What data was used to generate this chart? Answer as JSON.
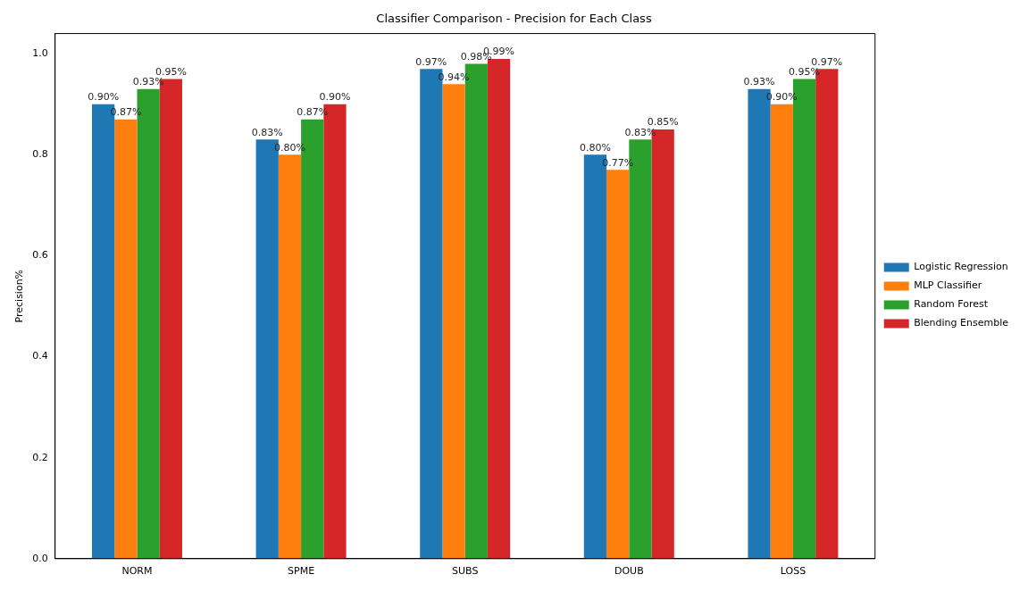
{
  "chart_data": {
    "type": "bar",
    "title": "Classifier Comparison - Precision for Each Class",
    "ylabel": "Precision%",
    "categories": [
      "NORM",
      "SPME",
      "SUBS",
      "DOUB",
      "LOSS"
    ],
    "series": [
      {
        "name": "Logistic Regression",
        "color": "#1f77b4",
        "values": [
          0.9,
          0.83,
          0.97,
          0.8,
          0.93
        ],
        "value_labels": [
          "0.90%",
          "0.83%",
          "0.97%",
          "0.80%",
          "0.93%"
        ]
      },
      {
        "name": "MLP Classifier",
        "color": "#ff7f0e",
        "values": [
          0.87,
          0.8,
          0.94,
          0.77,
          0.9
        ],
        "value_labels": [
          "0.87%",
          "0.80%",
          "0.94%",
          "0.77%",
          "0.90%"
        ]
      },
      {
        "name": "Random Forest",
        "color": "#2ca02c",
        "values": [
          0.93,
          0.87,
          0.98,
          0.83,
          0.95
        ],
        "value_labels": [
          "0.93%",
          "0.87%",
          "0.98%",
          "0.83%",
          "0.95%"
        ]
      },
      {
        "name": "Blending Ensemble",
        "color": "#d62728",
        "values": [
          0.95,
          0.9,
          0.99,
          0.85,
          0.97
        ],
        "value_labels": [
          "0.95%",
          "0.90%",
          "0.99%",
          "0.85%",
          "0.97%"
        ]
      }
    ],
    "ylim": [
      0,
      1.04
    ],
    "yticks": [
      {
        "value": 0,
        "label": "0.0"
      },
      {
        "value": 0.2,
        "label": "0.2"
      },
      {
        "value": 0.4,
        "label": "0.4"
      },
      {
        "value": 0.6,
        "label": "0.6"
      },
      {
        "value": 0.8,
        "label": "0.8"
      },
      {
        "value": 1,
        "label": "1.0"
      }
    ],
    "grid": false,
    "legend": "right"
  }
}
